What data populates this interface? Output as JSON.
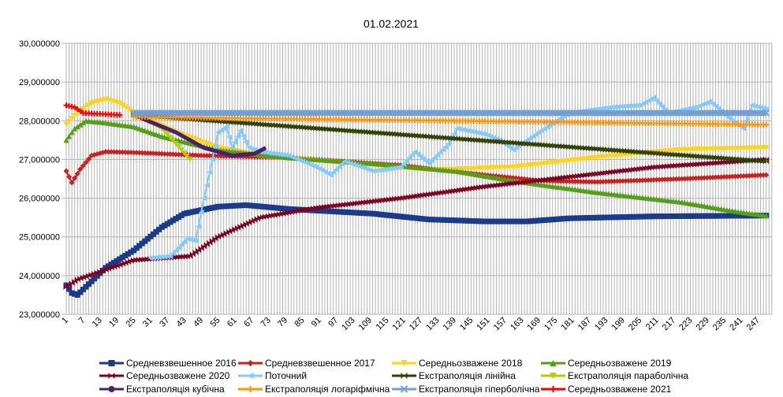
{
  "chart_data": {
    "type": "line",
    "title": "01.02.2021",
    "xlabel": "",
    "ylabel": "",
    "xlim": [
      1,
      250
    ],
    "ylim": [
      23,
      30
    ],
    "y_ticks": [
      "23,000000",
      "24,000000",
      "25,000000",
      "26,000000",
      "27,000000",
      "28,000000",
      "29,000000",
      "30,000000"
    ],
    "x_ticks": [
      "1",
      "7",
      "13",
      "19",
      "25",
      "31",
      "37",
      "43",
      "49",
      "55",
      "61",
      "67",
      "73",
      "79",
      "85",
      "91",
      "97",
      "103",
      "109",
      "115",
      "121",
      "127",
      "133",
      "139",
      "145",
      "151",
      "157",
      "163",
      "169",
      "175",
      "181",
      "187",
      "193",
      "199",
      "205",
      "211",
      "217",
      "223",
      "229",
      "235",
      "241",
      "247"
    ],
    "grid": true,
    "legend_position": "bottom",
    "series": [
      {
        "name": "Средневзвешенное 2016",
        "color": "#1b3a8c",
        "marker": "square",
        "points": [
          [
            1,
            23.75
          ],
          [
            3,
            23.55
          ],
          [
            5,
            23.5
          ],
          [
            10,
            23.85
          ],
          [
            15,
            24.2
          ],
          [
            25,
            24.65
          ],
          [
            35,
            25.25
          ],
          [
            43,
            25.6
          ],
          [
            55,
            25.78
          ],
          [
            65,
            25.82
          ],
          [
            80,
            25.72
          ],
          [
            110,
            25.6
          ],
          [
            130,
            25.45
          ],
          [
            150,
            25.4
          ],
          [
            165,
            25.4
          ],
          [
            180,
            25.48
          ],
          [
            210,
            25.53
          ],
          [
            250,
            25.55
          ]
        ]
      },
      {
        "name": "Средневзвешенное 2017",
        "color": "#c9211e",
        "marker": "diamond",
        "points": [
          [
            1,
            26.7
          ],
          [
            3,
            26.4
          ],
          [
            6,
            26.75
          ],
          [
            10,
            27.1
          ],
          [
            15,
            27.2
          ],
          [
            25,
            27.18
          ],
          [
            50,
            27.1
          ],
          [
            80,
            27.05
          ],
          [
            120,
            26.85
          ],
          [
            150,
            26.6
          ],
          [
            170,
            26.45
          ],
          [
            190,
            26.42
          ],
          [
            220,
            26.5
          ],
          [
            250,
            26.6
          ]
        ]
      },
      {
        "name": "Середньозважене 2018",
        "color": "#ffd320",
        "marker": "tri-down",
        "points": [
          [
            1,
            27.9
          ],
          [
            5,
            28.2
          ],
          [
            10,
            28.45
          ],
          [
            15,
            28.55
          ],
          [
            20,
            28.45
          ],
          [
            25,
            28.2
          ],
          [
            40,
            27.7
          ],
          [
            55,
            27.3
          ],
          [
            70,
            27.1
          ],
          [
            100,
            26.9
          ],
          [
            130,
            26.72
          ],
          [
            160,
            26.8
          ],
          [
            190,
            27.05
          ],
          [
            220,
            27.25
          ],
          [
            250,
            27.3
          ]
        ]
      },
      {
        "name": "Середньозважене 2019",
        "color": "#579d1c",
        "marker": "tri-up",
        "points": [
          [
            1,
            27.5
          ],
          [
            4,
            27.8
          ],
          [
            8,
            28.0
          ],
          [
            15,
            27.95
          ],
          [
            25,
            27.85
          ],
          [
            35,
            27.6
          ],
          [
            55,
            27.25
          ],
          [
            80,
            27.05
          ],
          [
            110,
            26.9
          ],
          [
            140,
            26.7
          ],
          [
            160,
            26.45
          ],
          [
            190,
            26.15
          ],
          [
            220,
            25.9
          ],
          [
            240,
            25.65
          ],
          [
            250,
            25.55
          ]
        ]
      },
      {
        "name": "Середньозважене 2020",
        "color": "#7e0021",
        "marker": "bowtie",
        "points": [
          [
            1,
            23.7
          ],
          [
            5,
            23.9
          ],
          [
            15,
            24.15
          ],
          [
            25,
            24.4
          ],
          [
            45,
            24.5
          ],
          [
            55,
            25.0
          ],
          [
            70,
            25.5
          ],
          [
            90,
            25.75
          ],
          [
            120,
            26.0
          ],
          [
            150,
            26.3
          ],
          [
            180,
            26.55
          ],
          [
            210,
            26.8
          ],
          [
            250,
            27.0
          ]
        ]
      },
      {
        "name": "Поточний",
        "color": "#83caff",
        "marker": "arrow",
        "points": [
          [
            31,
            24.45
          ],
          [
            38,
            24.5
          ],
          [
            44,
            24.95
          ],
          [
            47,
            24.9
          ],
          [
            50,
            26.0
          ],
          [
            53,
            27.0
          ],
          [
            55,
            27.7
          ],
          [
            58,
            27.85
          ],
          [
            60,
            27.3
          ],
          [
            63,
            27.75
          ],
          [
            66,
            27.3
          ],
          [
            70,
            27.2
          ],
          [
            80,
            27.1
          ],
          [
            90,
            26.8
          ],
          [
            95,
            26.6
          ],
          [
            100,
            26.95
          ],
          [
            110,
            26.7
          ],
          [
            120,
            26.8
          ],
          [
            125,
            27.2
          ],
          [
            130,
            26.9
          ],
          [
            137,
            27.4
          ],
          [
            140,
            27.8
          ],
          [
            150,
            27.65
          ],
          [
            155,
            27.5
          ],
          [
            160,
            27.25
          ],
          [
            170,
            27.75
          ],
          [
            180,
            28.2
          ],
          [
            195,
            28.35
          ],
          [
            205,
            28.4
          ],
          [
            210,
            28.6
          ],
          [
            215,
            28.2
          ],
          [
            225,
            28.35
          ],
          [
            230,
            28.5
          ],
          [
            238,
            28.0
          ],
          [
            242,
            27.8
          ],
          [
            245,
            28.4
          ],
          [
            250,
            28.3
          ]
        ]
      },
      {
        "name": "Екстраполяція лінійна",
        "color": "#314004",
        "marker": "bowtie",
        "points": [
          [
            25,
            28.15
          ],
          [
            250,
            26.95
          ]
        ]
      },
      {
        "name": "Екстраполяція параболічна",
        "color": "#aecf00",
        "marker": "tri-down",
        "points": [
          [
            25,
            28.15
          ],
          [
            35,
            27.8
          ],
          [
            45,
            27.0
          ]
        ]
      },
      {
        "name": "Екстраполяція кубічна",
        "color": "#4b1f6f",
        "marker": "circle",
        "points": [
          [
            25,
            28.15
          ],
          [
            40,
            27.7
          ],
          [
            50,
            27.3
          ],
          [
            60,
            27.1
          ],
          [
            68,
            27.15
          ],
          [
            72,
            27.3
          ]
        ]
      },
      {
        "name": "Екстраполяція логаріфмічна",
        "color": "#ff950e",
        "marker": "plus",
        "points": [
          [
            25,
            28.1
          ],
          [
            250,
            27.9
          ]
        ]
      },
      {
        "name": "Екстраполяція гіперболічна",
        "color": "#729fcf",
        "marker": "x",
        "points": [
          [
            25,
            28.2
          ],
          [
            250,
            28.2
          ]
        ]
      },
      {
        "name": "Середньозважене 2021",
        "color": "#ff0000",
        "marker": "plus",
        "points": [
          [
            1,
            28.4
          ],
          [
            4,
            28.35
          ],
          [
            7,
            28.2
          ],
          [
            20,
            28.15
          ]
        ]
      }
    ]
  }
}
